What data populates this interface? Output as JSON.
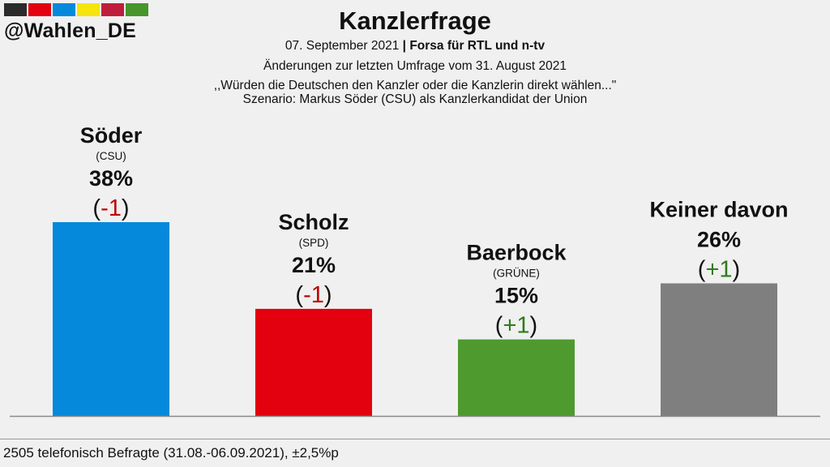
{
  "header": {
    "handle": "@Wahlen_DE",
    "flag_colors": [
      "#2b2b2b",
      "#e3000f",
      "#0489db",
      "#f5e50a",
      "#be1e3c",
      "#46962b"
    ],
    "title": "Kanzlerfrage",
    "date": "07. September 2021",
    "separator": "|",
    "source": "Forsa für RTL und n-tv",
    "changes_note": "Änderungen zur letzten Umfrage vom 31. August 2021",
    "question": ",,Würden die Deutschen den Kanzler oder die Kanzlerin direkt wählen...\"",
    "scenario": "Szenario: Markus Söder (CSU) als Kanzlerkandidat der Union"
  },
  "footer": {
    "note": "2505 telefonisch Befragte (31.08.-06.09.2021), ±2,5%p"
  },
  "chart_data": {
    "type": "bar",
    "categories": [
      "Söder",
      "Scholz",
      "Baerbock",
      "Keiner davon"
    ],
    "parties": [
      "(CSU)",
      "(SPD)",
      "(GRÜNE)",
      ""
    ],
    "values": [
      38,
      21,
      15,
      26
    ],
    "value_labels": [
      "38%",
      "21%",
      "15%",
      "26%"
    ],
    "change_labels": [
      "-1",
      "-1",
      "+1",
      "+1"
    ],
    "colors": [
      "#0489db",
      "#e3000f",
      "#4e9a2f",
      "#7f7f7f"
    ],
    "change_colors": {
      "negative": "#c00000",
      "positive": "#2e7d1a"
    },
    "ylim": [
      0,
      100
    ]
  }
}
